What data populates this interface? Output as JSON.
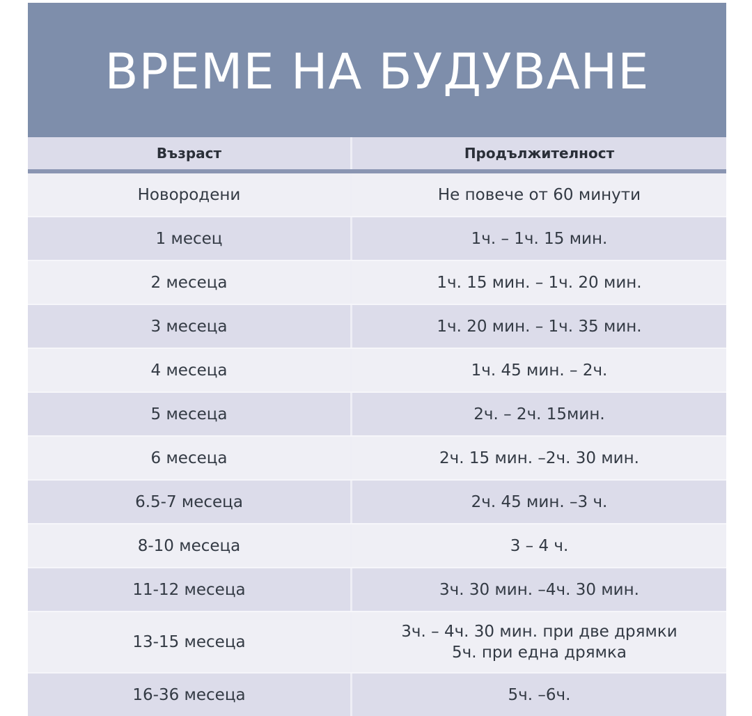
{
  "title": "ВРЕМЕ НА БУДУВАНЕ",
  "headers": {
    "age": "Възраст",
    "duration": "Продължителност"
  },
  "rows": [
    {
      "age": "Новородени",
      "duration": "Не повече от 60 минути"
    },
    {
      "age": "1 месец",
      "duration": "1ч. – 1ч. 15 мин."
    },
    {
      "age": "2 месеца",
      "duration": "1ч. 15 мин.  – 1ч. 20 мин."
    },
    {
      "age": "3 месеца",
      "duration": "1ч. 20 мин. – 1ч. 35 мин."
    },
    {
      "age": "4 месеца",
      "duration": "1ч. 45 мин. – 2ч."
    },
    {
      "age": "5 месеца",
      "duration": "2ч. – 2ч. 15мин."
    },
    {
      "age": "6 месеца",
      "duration": "2ч. 15 мин. –2ч. 30 мин."
    },
    {
      "age": "6.5-7 месеца",
      "duration": "2ч. 45 мин. –3 ч."
    },
    {
      "age": "8-10 месеца",
      "duration": "3 – 4 ч."
    },
    {
      "age": "11-12 месеца",
      "duration": "3ч. 30 мин. –4ч. 30 мин."
    },
    {
      "age": "13-15 месеца",
      "duration": "3ч. – 4ч. 30 мин. при две дрямки",
      "duration_line2": "5ч. при една дрямка"
    },
    {
      "age": "16-36 месеца",
      "duration": "5ч. –6ч."
    }
  ],
  "colors": {
    "title_band": "#7e8eab",
    "row_light": "#efeff5",
    "row_dark": "#dcdcea",
    "header_rule": "#8a95b2"
  }
}
